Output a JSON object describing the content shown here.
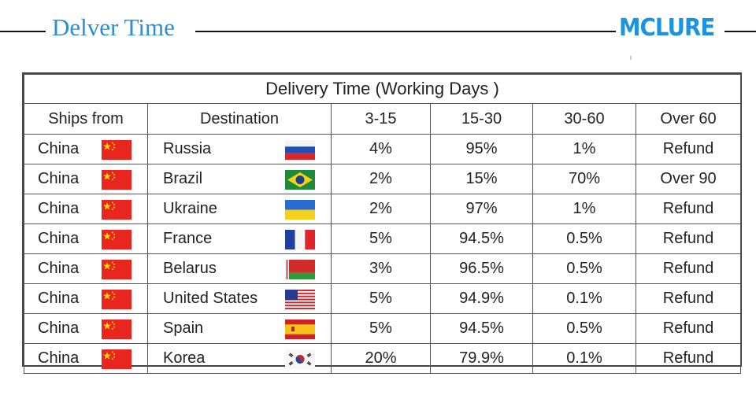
{
  "header": {
    "title": "Delver Time",
    "logo": "MCLURE"
  },
  "table": {
    "caption": "Delivery Time (Working Days )",
    "columns": [
      "Ships from",
      "Destination",
      "3-15",
      "15-30",
      "30-60",
      "Over 60"
    ],
    "rows": [
      {
        "from": "China",
        "from_flag": "china-flag-icon",
        "dest": "Russia",
        "dest_flag": "russia-flag-icon",
        "c1": "4%",
        "c2": "95%",
        "c3": "1%",
        "c4": "Refund"
      },
      {
        "from": "China",
        "from_flag": "china-flag-icon",
        "dest": "Brazil",
        "dest_flag": "brazil-flag-icon",
        "c1": "2%",
        "c2": "15%",
        "c3": "70%",
        "c4": "Over 90"
      },
      {
        "from": "China",
        "from_flag": "china-flag-icon",
        "dest": "Ukraine",
        "dest_flag": "ukraine-flag-icon",
        "c1": "2%",
        "c2": "97%",
        "c3": "1%",
        "c4": "Refund"
      },
      {
        "from": "China",
        "from_flag": "china-flag-icon",
        "dest": "France",
        "dest_flag": "france-flag-icon",
        "c1": "5%",
        "c2": "94.5%",
        "c3": "0.5%",
        "c4": "Refund"
      },
      {
        "from": "China",
        "from_flag": "china-flag-icon",
        "dest": "Belarus",
        "dest_flag": "belarus-flag-icon",
        "c1": "3%",
        "c2": "96.5%",
        "c3": "0.5%",
        "c4": "Refund"
      },
      {
        "from": "China",
        "from_flag": "china-flag-icon",
        "dest": "United States",
        "dest_flag": "usa-flag-icon",
        "c1": "5%",
        "c2": "94.9%",
        "c3": "0.1%",
        "c4": "Refund"
      },
      {
        "from": "China",
        "from_flag": "china-flag-icon",
        "dest": "Spain",
        "dest_flag": "spain-flag-icon",
        "c1": "5%",
        "c2": "94.5%",
        "c3": "0.5%",
        "c4": "Refund"
      },
      {
        "from": "China",
        "from_flag": "china-flag-icon",
        "dest": "Korea",
        "dest_flag": "korea-flag-icon",
        "c1": "20%",
        "c2": "79.9%",
        "c3": "0.1%",
        "c4": "Refund"
      }
    ]
  }
}
